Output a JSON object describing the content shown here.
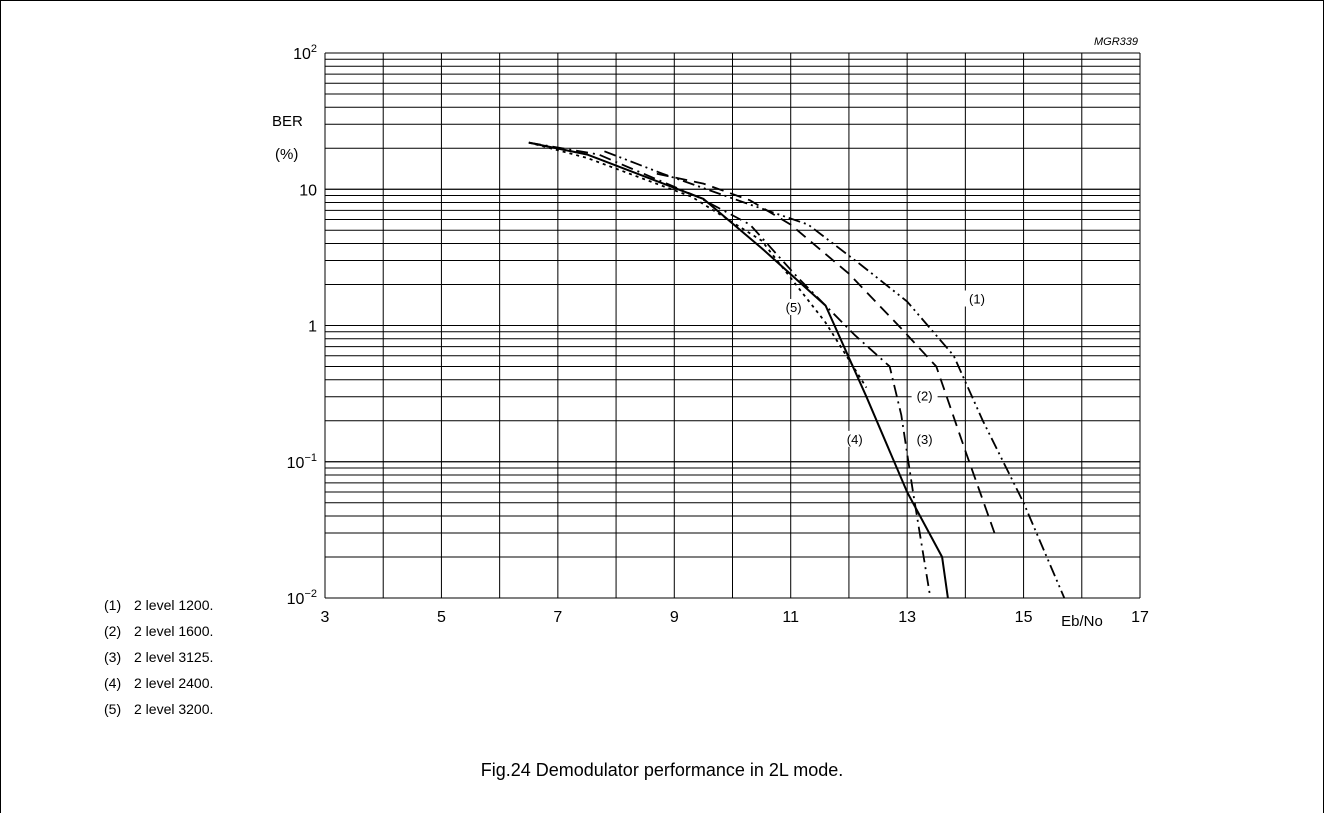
{
  "figure_code": "MGR339",
  "caption": "Fig.24  Demodulator performance in 2L mode.",
  "legend": [
    {
      "num": "(1)",
      "label": "2 level 1200."
    },
    {
      "num": "(2)",
      "label": "2 level 1600."
    },
    {
      "num": "(3)",
      "label": "2 level 3125."
    },
    {
      "num": "(4)",
      "label": "2 level 2400."
    },
    {
      "num": "(5)",
      "label": "2 level 3200."
    }
  ],
  "chart_data": {
    "type": "line",
    "xlabel": "Eb/No",
    "ylabel": "BER",
    "yunit": "(%)",
    "xlim": [
      3,
      17
    ],
    "ylim": [
      0.01,
      100
    ],
    "yscale": "log",
    "grid": true,
    "x_ticks": [
      "3",
      "5",
      "7",
      "9",
      "11",
      "13",
      "15",
      "17"
    ],
    "y_ticks": [
      {
        "base": "10",
        "exp": "−2",
        "value": 0.01
      },
      {
        "base": "10",
        "exp": "−1",
        "value": 0.1
      },
      {
        "base": "1",
        "exp": "",
        "value": 1
      },
      {
        "base": "10",
        "exp": "",
        "value": 10
      },
      {
        "base": "10",
        "exp": "2",
        "value": 100
      }
    ],
    "series": [
      {
        "name": "(1)",
        "style": "dash-dot-dot",
        "points": [
          [
            7.8,
            19
          ],
          [
            8.8,
            13
          ],
          [
            10.2,
            8
          ],
          [
            11.3,
            5.5
          ],
          [
            12.2,
            2.8
          ],
          [
            13,
            1.5
          ],
          [
            13.8,
            0.6
          ],
          [
            14.3,
            0.2
          ],
          [
            15,
            0.05
          ],
          [
            15.7,
            0.01
          ]
        ]
      },
      {
        "name": "(2)",
        "style": "dash",
        "points": [
          [
            8.7,
            13
          ],
          [
            9.5,
            11
          ],
          [
            10.3,
            8.3
          ],
          [
            11,
            5.5
          ],
          [
            12,
            2.4
          ],
          [
            12.9,
            0.95
          ],
          [
            13.5,
            0.5
          ],
          [
            14,
            0.12
          ],
          [
            14.5,
            0.03
          ]
        ]
      },
      {
        "name": "(3)",
        "style": "dash-dot",
        "points": [
          [
            6.5,
            22
          ],
          [
            7.7,
            18
          ],
          [
            9.4,
            8.8
          ],
          [
            10.3,
            5.5
          ],
          [
            11.1,
            2.3
          ],
          [
            12.1,
            0.85
          ],
          [
            12.7,
            0.5
          ],
          [
            12.9,
            0.22
          ],
          [
            13.1,
            0.06
          ],
          [
            13.4,
            0.01
          ]
        ]
      },
      {
        "name": "(4)",
        "style": "solid",
        "points": [
          [
            6.5,
            22
          ],
          [
            7.5,
            18
          ],
          [
            9.5,
            8.5
          ],
          [
            10.5,
            3.7
          ],
          [
            11.6,
            1.4
          ],
          [
            12.3,
            0.3
          ],
          [
            13.0,
            0.06
          ],
          [
            13.6,
            0.02
          ],
          [
            13.7,
            0.01
          ]
        ]
      },
      {
        "name": "(5)",
        "style": "dot",
        "points": [
          [
            6.5,
            22
          ],
          [
            7.5,
            17
          ],
          [
            9.3,
            8.8
          ],
          [
            10.5,
            4.2
          ],
          [
            11.6,
            1.05
          ],
          [
            12.3,
            0.35
          ]
        ]
      }
    ],
    "curve_labels": [
      {
        "text": "(1)",
        "x": 14.2,
        "y": 1.5
      },
      {
        "text": "(2)",
        "x": 13.3,
        "y": 0.29
      },
      {
        "text": "(3)",
        "x": 13.3,
        "y": 0.14
      },
      {
        "text": "(4)",
        "x": 12.1,
        "y": 0.14
      },
      {
        "text": "(5)",
        "x": 11.05,
        "y": 1.3
      }
    ]
  }
}
